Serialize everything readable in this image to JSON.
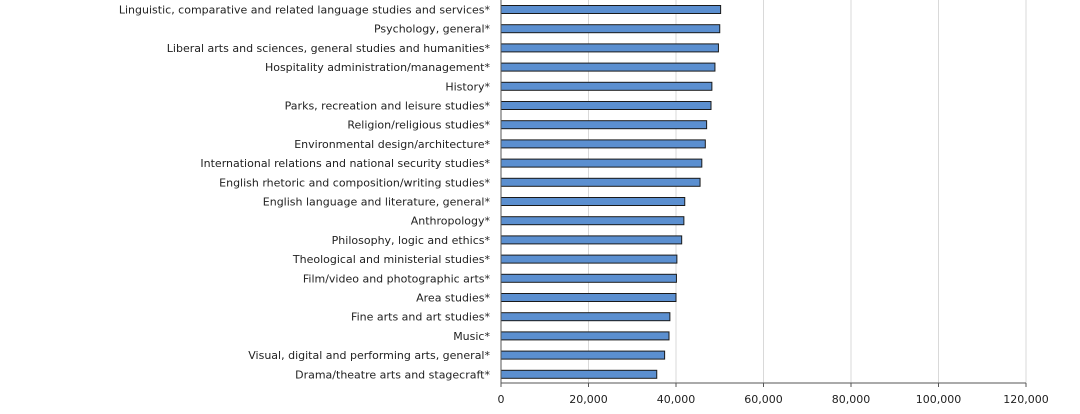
{
  "chart_data": {
    "type": "bar",
    "orientation": "horizontal",
    "categories": [
      "Linguistic, comparative and related language studies and services*",
      "Psychology, general*",
      "Liberal arts and sciences, general studies and humanities*",
      "Hospitality administration/management*",
      "History*",
      "Parks, recreation and leisure studies*",
      "Religion/religious studies*",
      "Environmental design/architecture*",
      "International relations and national security studies*",
      "English rhetoric and composition/writing studies*",
      "English language and literature, general*",
      "Anthropology*",
      "Philosophy, logic and ethics*",
      "Theological and ministerial studies*",
      "Film/video and photographic arts*",
      "Area studies*",
      "Fine arts and art studies*",
      "Music*",
      "Visual, digital and performing arts, general*",
      "Drama/theatre arts and stagecraft*"
    ],
    "values": [
      50200,
      50000,
      49700,
      48900,
      48200,
      48000,
      47000,
      46700,
      45900,
      45500,
      42000,
      41800,
      41300,
      40200,
      40100,
      40000,
      38600,
      38400,
      37400,
      35600
    ],
    "xlim": [
      0,
      120000
    ],
    "xticks": [
      0,
      20000,
      40000,
      60000,
      80000,
      100000,
      120000
    ],
    "xtick_labels": [
      "0",
      "20,000",
      "40,000",
      "60,000",
      "80,000",
      "100,000",
      "120,000"
    ],
    "grid": "vertical",
    "colors": {
      "bar_fill": "#5b8fd0",
      "bar_stroke": "#1a1a1a",
      "grid": "#d9d9d9"
    }
  }
}
